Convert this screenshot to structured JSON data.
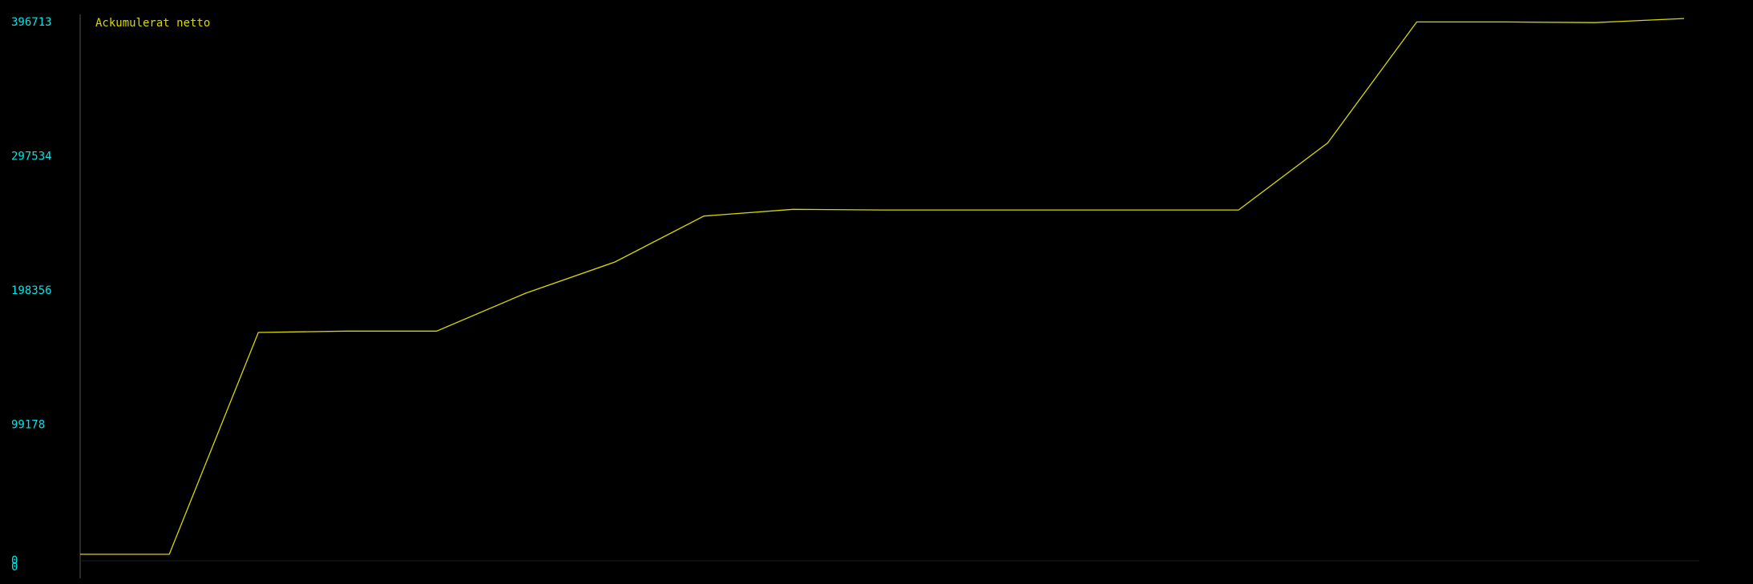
{
  "colors": {
    "background": "#000000",
    "axis": "#2a2a2a",
    "tick_label": "#00e5e5",
    "series": "#d8d800"
  },
  "chart_data": {
    "type": "line",
    "legend": {
      "placement": "top-left",
      "entries": [
        "Ackumulerat netto"
      ]
    },
    "grid": false,
    "ylim": [
      0,
      396713
    ],
    "y_ticks": [
      "396713",
      "297534",
      "198356",
      "99178",
      "0"
    ],
    "y_tick_values": [
      396713,
      297534,
      198356,
      99178,
      0
    ],
    "x": [
      0,
      1,
      2,
      3,
      4,
      5,
      6,
      7,
      8,
      9,
      10,
      11,
      12,
      13,
      14,
      15,
      16,
      17,
      18
    ],
    "series": [
      {
        "name": "Ackumulerat netto",
        "values": [
          3000,
          3000,
          167000,
          168000,
          168000,
          196000,
          219000,
          253000,
          258000,
          257500,
          257500,
          257500,
          257500,
          257500,
          307000,
          396500,
          396500,
          396000,
          399000
        ]
      }
    ]
  }
}
